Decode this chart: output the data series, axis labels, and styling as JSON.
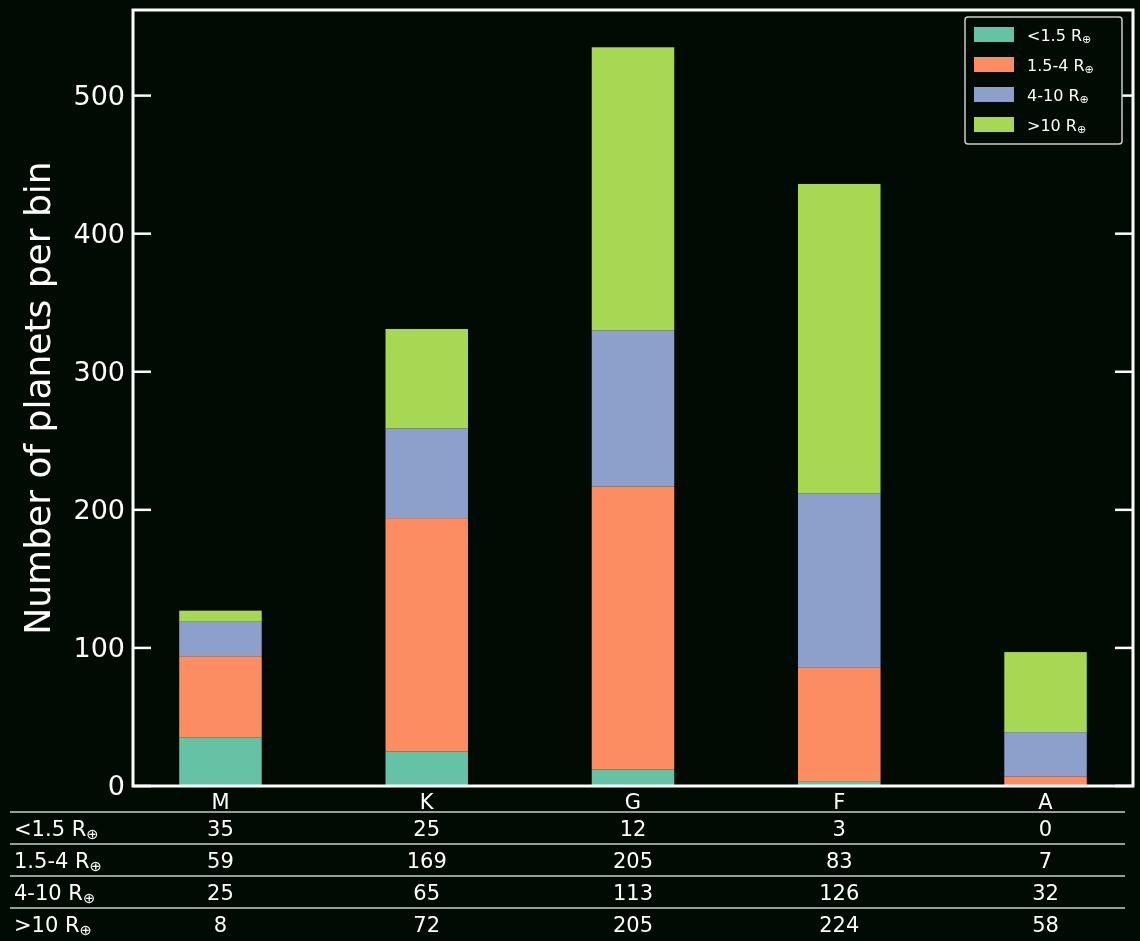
{
  "chart_data": {
    "type": "bar",
    "stacked": true,
    "ylabel": "Number of planets per bin",
    "categories": [
      "M",
      "K",
      "G",
      "F",
      "A"
    ],
    "series": [
      {
        "name": "<1.5 R$_{⊕}$",
        "color": "#66c2a5",
        "values": [
          35,
          25,
          12,
          3,
          0
        ]
      },
      {
        "name": "1.5-4 R$_{⊕}$",
        "color": "#fc8d62",
        "values": [
          59,
          169,
          205,
          83,
          7
        ]
      },
      {
        "name": "4-10 R$_{⊕}$",
        "color": "#8da0cb",
        "values": [
          25,
          65,
          113,
          126,
          32
        ]
      },
      {
        "name": ">10 R$_{⊕}$",
        "color": "#a6d854",
        "values": [
          8,
          72,
          205,
          224,
          58
        ]
      }
    ],
    "ylim": [
      0,
      562
    ],
    "yticks": [
      0,
      100,
      200,
      300,
      400,
      500
    ],
    "legend": "top right",
    "data_labels": true
  }
}
